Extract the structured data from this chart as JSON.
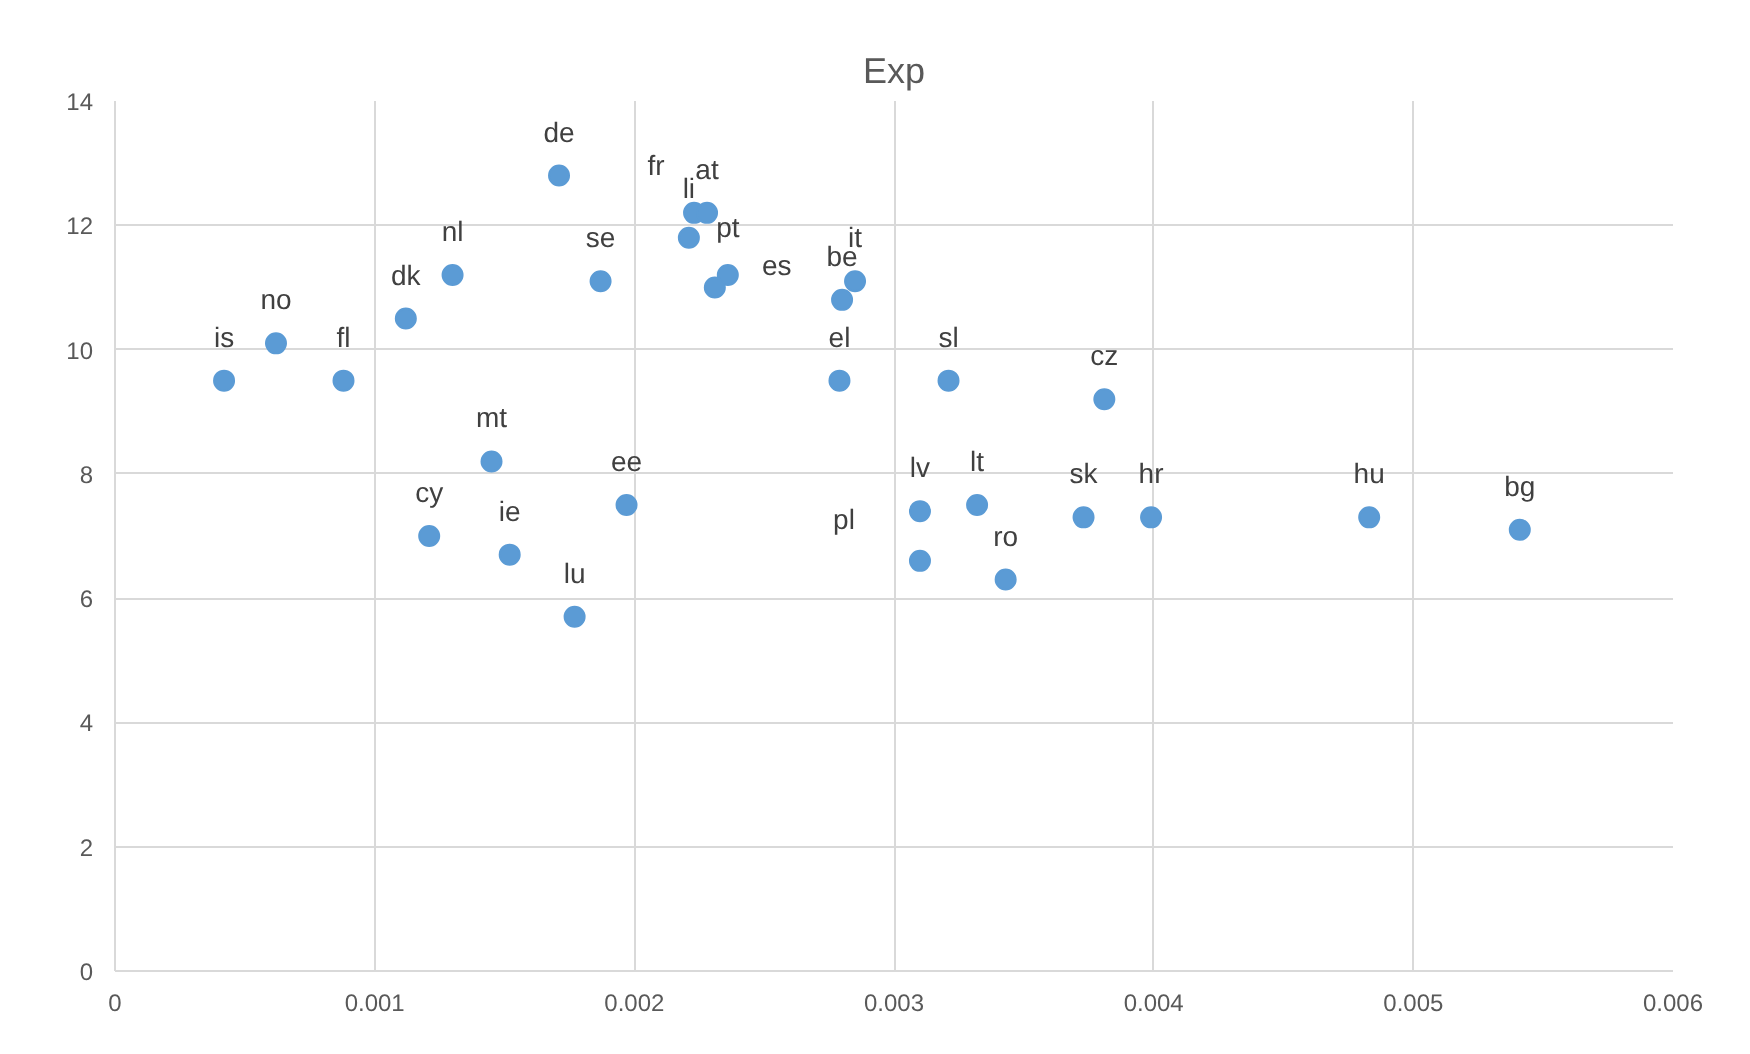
{
  "chart_data": {
    "type": "scatter",
    "title": "Exp",
    "x": [
      0.00042,
      0.00062,
      0.00088,
      0.00112,
      0.0013,
      0.00171,
      0.00187,
      0.00121,
      0.00145,
      0.00152,
      0.00177,
      0.00197,
      0.00223,
      0.00221,
      0.00228,
      0.00236,
      0.00231,
      0.0028,
      0.00285,
      0.00279,
      0.00321,
      0.0031,
      0.0031,
      0.00332,
      0.00343,
      0.00381,
      0.00373,
      0.00399,
      0.00483,
      0.00541
    ],
    "series": [
      {
        "color": "#5b9bd5",
        "values": [
          9.5,
          10.1,
          9.5,
          10.5,
          11.2,
          12.8,
          11.1,
          7.0,
          8.2,
          6.7,
          5.7,
          7.5,
          12.2,
          11.8,
          12.2,
          11.2,
          11.0,
          10.8,
          11.1,
          9.5,
          9.5,
          7.4,
          6.6,
          7.5,
          6.3,
          9.2,
          7.3,
          7.3,
          7.3,
          7.1
        ]
      }
    ],
    "annotations": [
      {
        "text": "is",
        "x": 0.00042,
        "y": 9.5
      },
      {
        "text": "no",
        "x": 0.00062,
        "y": 10.1
      },
      {
        "text": "fl",
        "x": 0.00088,
        "y": 9.5
      },
      {
        "text": "dk",
        "x": 0.00112,
        "y": 10.5
      },
      {
        "text": "nl",
        "x": 0.0013,
        "y": 11.2
      },
      {
        "text": "de",
        "x": 0.00171,
        "y": 12.8
      },
      {
        "text": "se",
        "x": 0.00187,
        "y": 11.1
      },
      {
        "text": "cy",
        "x": 0.00121,
        "y": 7.0
      },
      {
        "text": "mt",
        "x": 0.00145,
        "y": 8.2
      },
      {
        "text": "ie",
        "x": 0.00152,
        "y": 6.7
      },
      {
        "text": "lu",
        "x": 0.00177,
        "y": 5.7
      },
      {
        "text": "ee",
        "x": 0.00197,
        "y": 7.5
      },
      {
        "text": "fr",
        "x": 0.00223,
        "y": 12.2
      },
      {
        "text": "li",
        "x": 0.00221,
        "y": 11.8
      },
      {
        "text": "at",
        "x": 0.00228,
        "y": 12.2
      },
      {
        "text": "pt",
        "x": 0.00236,
        "y": 11.2
      },
      {
        "text": "es",
        "x": 0.00231,
        "y": 11.0
      },
      {
        "text": "be",
        "x": 0.0028,
        "y": 10.8
      },
      {
        "text": "it",
        "x": 0.00285,
        "y": 11.1
      },
      {
        "text": "el",
        "x": 0.00279,
        "y": 9.5
      },
      {
        "text": "sl",
        "x": 0.00321,
        "y": 9.5
      },
      {
        "text": "lv",
        "x": 0.0031,
        "y": 7.4
      },
      {
        "text": "pl",
        "x": 0.0031,
        "y": 6.6
      },
      {
        "text": "lt",
        "x": 0.00332,
        "y": 7.5
      },
      {
        "text": "ro",
        "x": 0.00343,
        "y": 6.3
      },
      {
        "text": "cz",
        "x": 0.00381,
        "y": 9.2
      },
      {
        "text": "sk",
        "x": 0.00373,
        "y": 7.3
      },
      {
        "text": "hr",
        "x": 0.00399,
        "y": 7.3
      },
      {
        "text": "hu",
        "x": 0.00483,
        "y": 7.3
      },
      {
        "text": "bg",
        "x": 0.00541,
        "y": 7.1
      }
    ],
    "xlim": [
      0,
      0.006
    ],
    "xticks": [
      0,
      {
        "value": 0.001,
        "label": "0.001"
      },
      {
        "value": 0.002,
        "label": "0.002"
      },
      {
        "value": 0.003,
        "label": "0.003"
      },
      {
        "value": 0.004,
        "label": "0.004"
      },
      {
        "value": 0.005,
        "label": "0.005"
      },
      {
        "value": 0.006,
        "label": "0.006"
      }
    ],
    "ylim": [
      0,
      14
    ],
    "yticks": [
      0,
      2,
      4,
      6,
      8,
      10,
      12,
      14
    ],
    "grid": true,
    "marker": "circle"
  }
}
